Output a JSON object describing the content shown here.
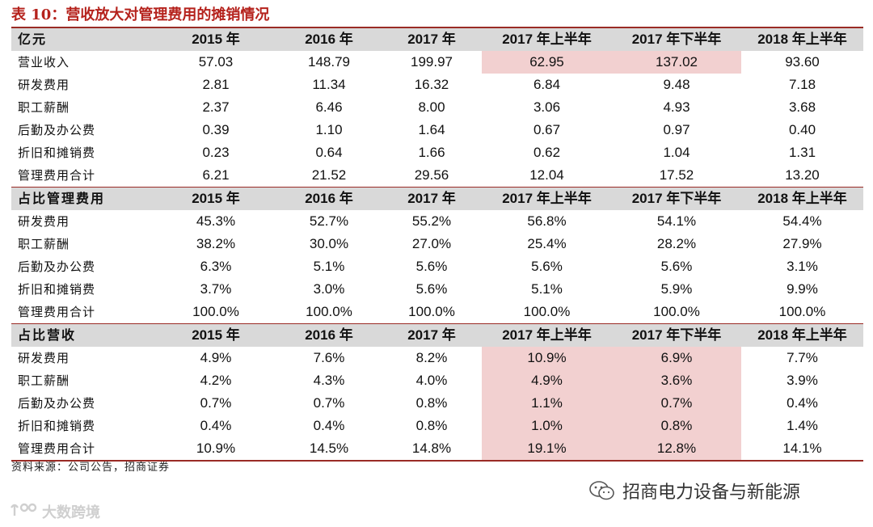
{
  "title": "表 10：营收放大对管理费用的摊销情况",
  "sections": [
    {
      "header": [
        "亿元",
        "2015 年",
        "2016 年",
        "2017 年",
        "2017 年上半年",
        "2017 年下半年",
        "2018 年上半年"
      ],
      "rows": [
        [
          "营业收入",
          "57.03",
          "148.79",
          "199.97",
          "62.95",
          "137.02",
          "93.60"
        ],
        [
          "研发费用",
          "2.81",
          "11.34",
          "16.32",
          "6.84",
          "9.48",
          "7.18"
        ],
        [
          "职工薪酬",
          "2.37",
          "6.46",
          "8.00",
          "3.06",
          "4.93",
          "3.68"
        ],
        [
          "后勤及办公费",
          "0.39",
          "1.10",
          "1.64",
          "0.67",
          "0.97",
          "0.40"
        ],
        [
          "折旧和摊销费",
          "0.23",
          "0.64",
          "1.66",
          "0.62",
          "1.04",
          "1.31"
        ],
        [
          "管理费用合计",
          "6.21",
          "21.52",
          "29.56",
          "12.04",
          "17.52",
          "13.20"
        ]
      ]
    },
    {
      "header": [
        "占比管理费用",
        "2015 年",
        "2016 年",
        "2017 年",
        "2017 年上半年",
        "2017 年下半年",
        "2018 年上半年"
      ],
      "rows": [
        [
          "研发费用",
          "45.3%",
          "52.7%",
          "55.2%",
          "56.8%",
          "54.1%",
          "54.4%"
        ],
        [
          "职工薪酬",
          "38.2%",
          "30.0%",
          "27.0%",
          "25.4%",
          "28.2%",
          "27.9%"
        ],
        [
          "后勤及办公费",
          "6.3%",
          "5.1%",
          "5.6%",
          "5.6%",
          "5.6%",
          "3.1%"
        ],
        [
          "折旧和摊销费",
          "3.7%",
          "3.0%",
          "5.6%",
          "5.1%",
          "5.9%",
          "9.9%"
        ],
        [
          "管理费用合计",
          "100.0%",
          "100.0%",
          "100.0%",
          "100.0%",
          "100.0%",
          "100.0%"
        ]
      ]
    },
    {
      "header": [
        "占比营收",
        "2015 年",
        "2016 年",
        "2017 年",
        "2017 年上半年",
        "2017 年下半年",
        "2018 年上半年"
      ],
      "rows": [
        [
          "研发费用",
          "4.9%",
          "7.6%",
          "8.2%",
          "10.9%",
          "6.9%",
          "7.7%"
        ],
        [
          "职工薪酬",
          "4.2%",
          "4.3%",
          "4.0%",
          "4.9%",
          "3.6%",
          "3.9%"
        ],
        [
          "后勤及办公费",
          "0.7%",
          "0.7%",
          "0.8%",
          "1.1%",
          "0.7%",
          "0.4%"
        ],
        [
          "折旧和摊销费",
          "0.4%",
          "0.4%",
          "0.8%",
          "1.0%",
          "0.8%",
          "1.4%"
        ],
        [
          "管理费用合计",
          "10.9%",
          "14.5%",
          "14.8%",
          "19.1%",
          "12.8%",
          "14.1%"
        ]
      ]
    }
  ],
  "highlight_color": "#f2d0d0",
  "accent_color": "#b5221c",
  "source": "资料来源：公司公告，招商证券",
  "wechat_label": "招商电力设备与新能源",
  "watermark_text": "大数跨境",
  "icons": {
    "wechat": "wechat-icon",
    "watermark": "watermark-logo-icon"
  }
}
